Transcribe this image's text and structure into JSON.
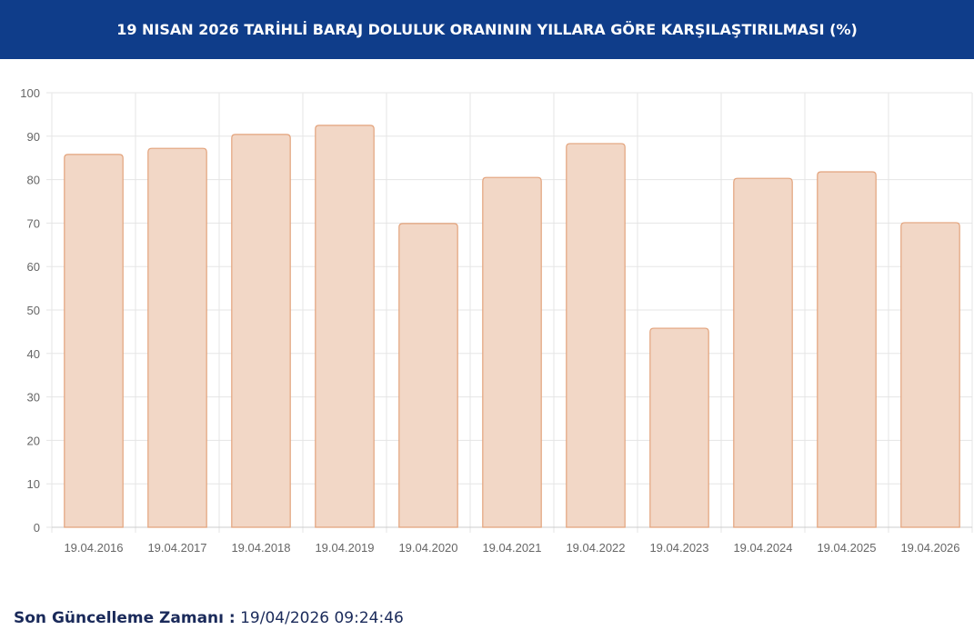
{
  "chart_data": {
    "type": "bar",
    "title": "19 NISAN 2026 TARİHLİ BARAJ DOLULUK ORANININ YILLARA GÖRE KARŞILAŞTIRILMASI (%)",
    "categories": [
      "19.04.2016",
      "19.04.2017",
      "19.04.2018",
      "19.04.2019",
      "19.04.2020",
      "19.04.2021",
      "19.04.2022",
      "19.04.2023",
      "19.04.2024",
      "19.04.2025",
      "19.04.2026"
    ],
    "values": [
      85.8,
      87.2,
      90.4,
      92.5,
      69.9,
      80.5,
      88.3,
      45.8,
      80.3,
      81.8,
      70.1
    ],
    "color": "#f2d7c6",
    "border_color": "#e3a37c",
    "ylim": [
      0,
      100
    ],
    "yticks": [
      0,
      10,
      20,
      30,
      40,
      50,
      60,
      70,
      80,
      90,
      100
    ],
    "grid": true
  },
  "footer": {
    "label": "Son Güncelleme Zamanı :",
    "value": "19/04/2026 09:24:46"
  }
}
